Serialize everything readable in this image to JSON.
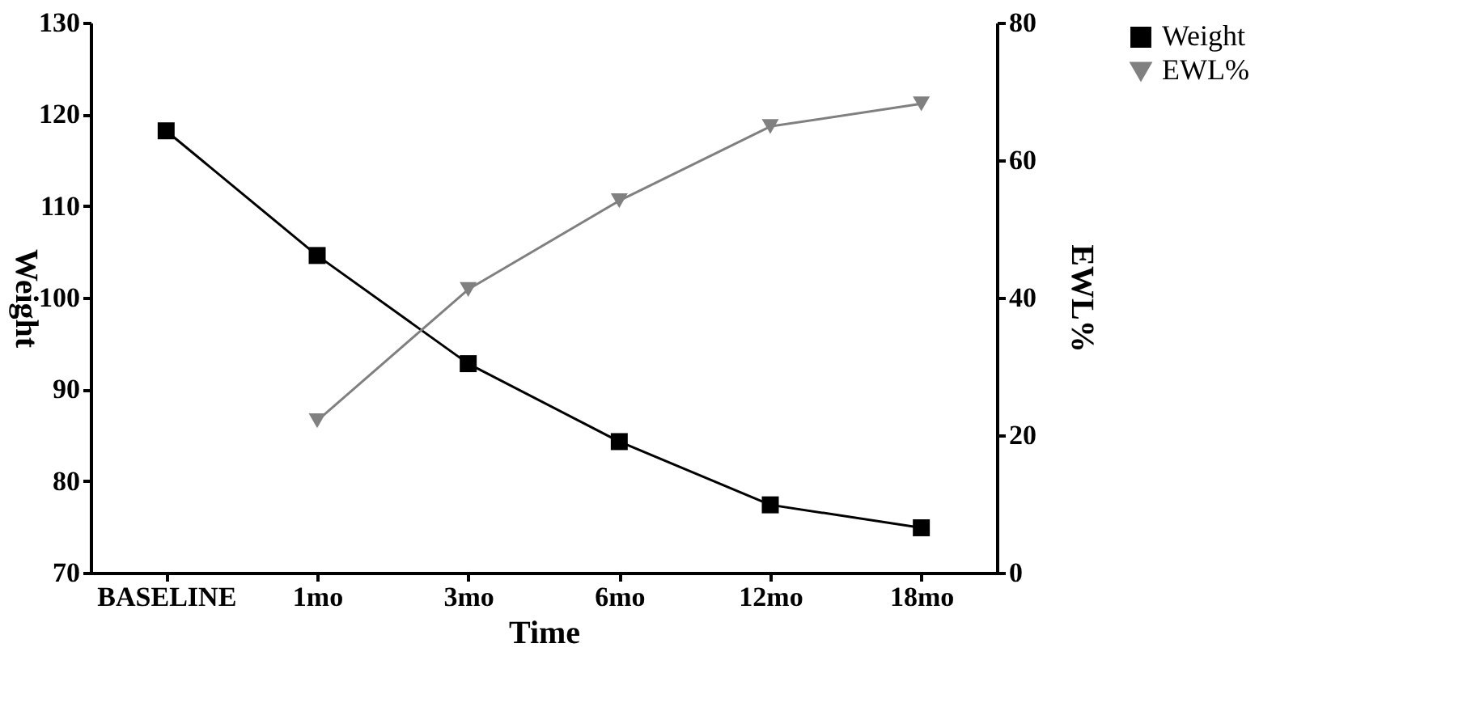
{
  "chart_data": {
    "type": "line",
    "xlabel": "Time",
    "ylabel": "Weight",
    "y2label": "EWL%",
    "categories": [
      "BASELINE",
      "1mo",
      "3mo",
      "6mo",
      "12mo",
      "18mo"
    ],
    "series": [
      {
        "name": "Weight",
        "color": "#000000",
        "marker": "square",
        "values": [
          118.2,
          104.6,
          92.8,
          84.3,
          77.4,
          74.9
        ]
      },
      {
        "name": "EWL%",
        "color": "#808080",
        "marker": "triangle-down",
        "axis": "y2",
        "values": [
          null,
          22.1,
          41.2,
          54.1,
          64.9,
          68.2
        ]
      }
    ],
    "ylim": [
      70,
      130
    ],
    "yticks": [
      70,
      80,
      90,
      100,
      110,
      120,
      130
    ],
    "y2lim": [
      0,
      80
    ],
    "y2ticks": [
      0,
      20,
      40,
      60,
      80
    ],
    "grid": false,
    "legend": "top right"
  }
}
